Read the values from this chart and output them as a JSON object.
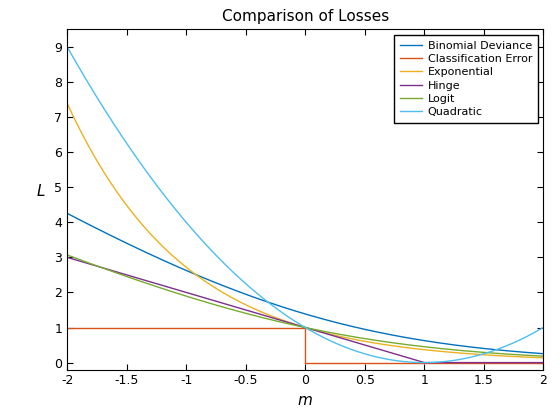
{
  "title": "Comparison of Losses",
  "xlabel": "m",
  "ylabel": "L",
  "xlim": [
    -2,
    2
  ],
  "ylim": [
    -0.2,
    9.5
  ],
  "yticks": [
    0,
    1,
    2,
    3,
    4,
    5,
    6,
    7,
    8,
    9
  ],
  "xticks": [
    -2.0,
    -1.5,
    -1.0,
    -0.5,
    0.0,
    0.5,
    1.0,
    1.5,
    2.0
  ],
  "legend": [
    {
      "label": "Binomial Deviance",
      "color": "#0072BD"
    },
    {
      "label": "Classification Error",
      "color": "#D95319"
    },
    {
      "label": "Exponential",
      "color": "#EDB120"
    },
    {
      "label": "Hinge",
      "color": "#7E2F8E"
    },
    {
      "label": "Logit",
      "color": "#77AC30"
    },
    {
      "label": "Quadratic",
      "color": "#4DBEEE"
    }
  ],
  "figure_bg": "#FFFFFF",
  "axes_bg": "#FFFFFF"
}
